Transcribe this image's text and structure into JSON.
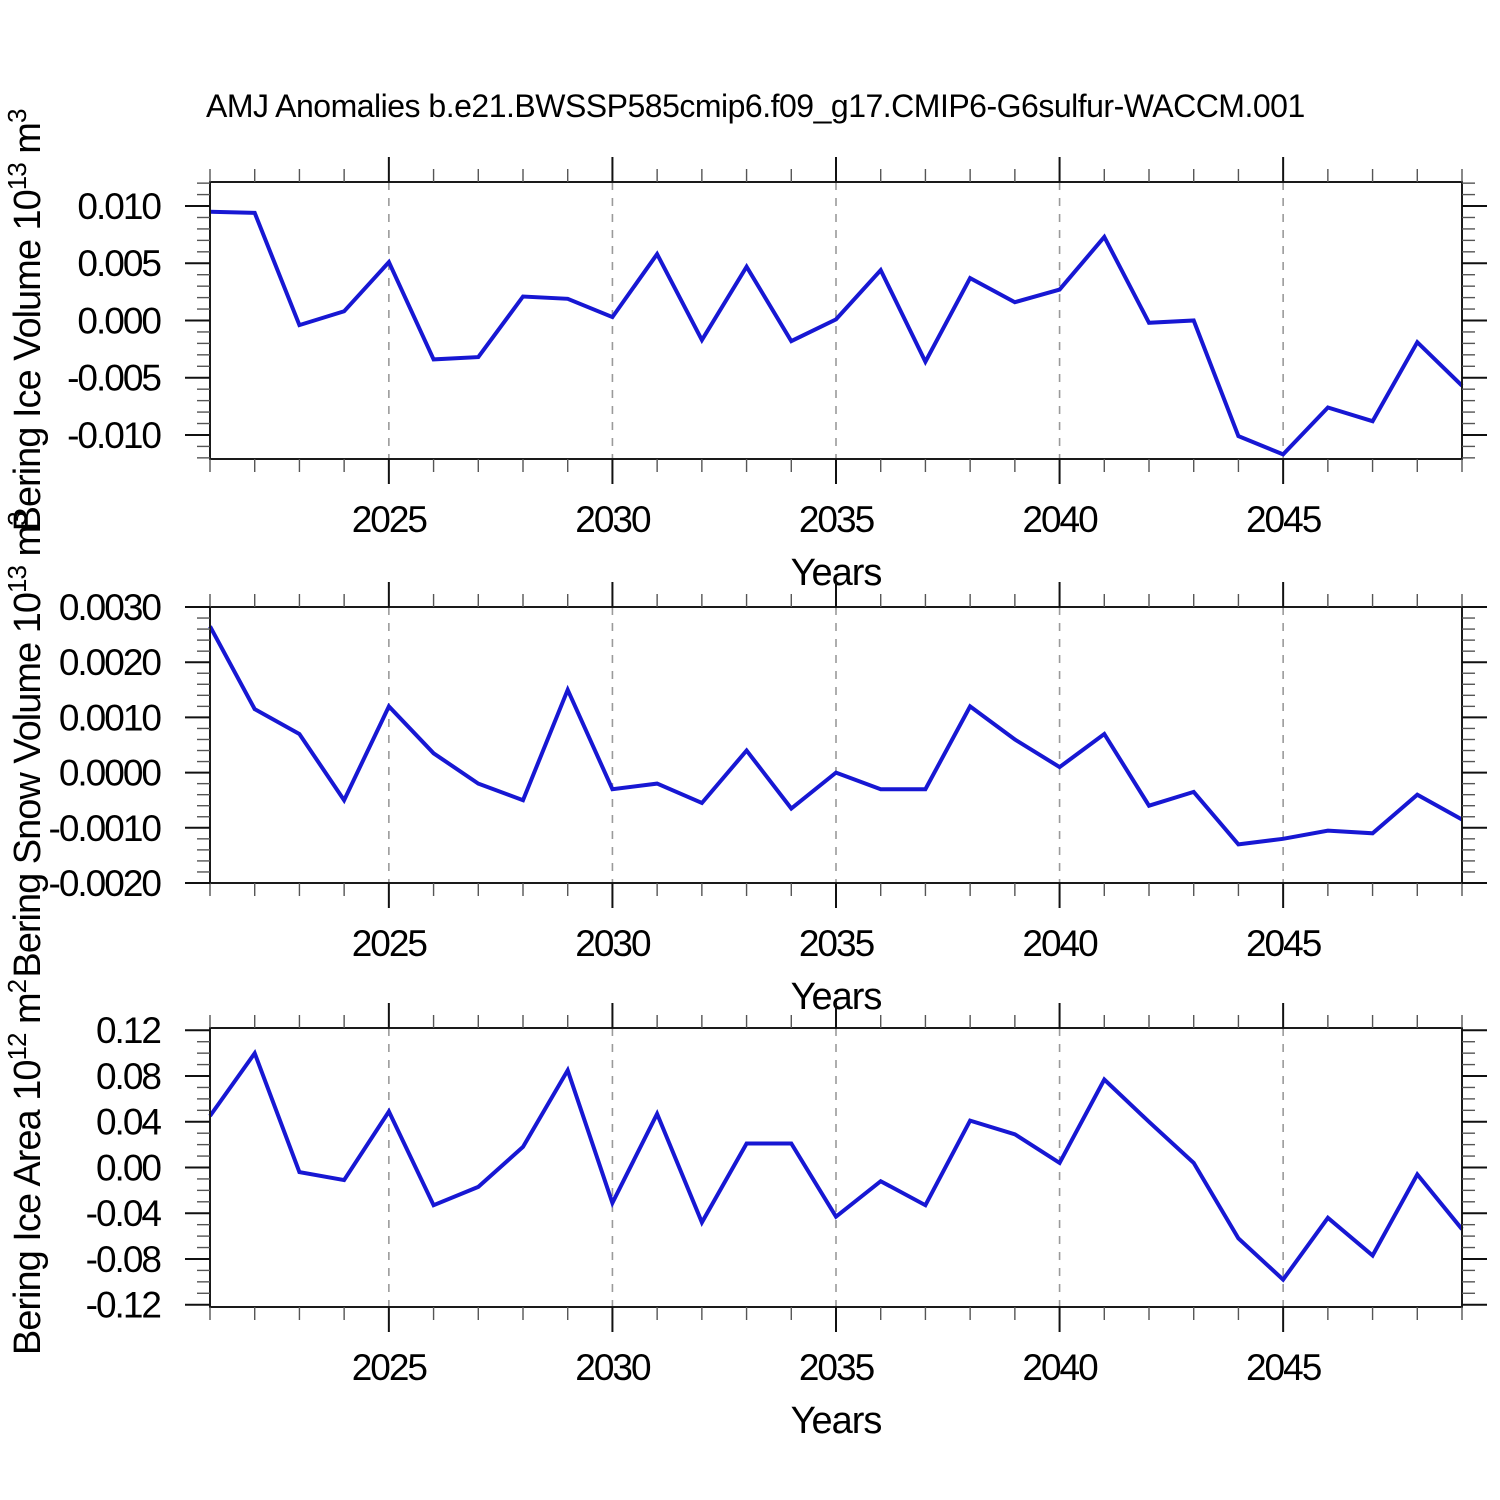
{
  "title": "AMJ Anomalies b.e21.BWSSP585cmip6.f09_g17.CMIP6-G6sulfur-WACCM.001",
  "colors": {
    "line": "#1717d3",
    "grid": "#9a9a9a",
    "frame": "#1a1a1a",
    "tick_major": "#111111",
    "tick_minor": "#555555",
    "text": "#000000",
    "background": "#ffffff"
  },
  "chart_data": [
    {
      "type": "line",
      "name": "bering-ice-volume",
      "ylabel_plain": "Bering Ice Volume 10^13 m^3",
      "ylabel_parts": [
        {
          "text": "Bering Ice Volume 10"
        },
        {
          "text": "13",
          "sup": true
        },
        {
          "text": " m"
        },
        {
          "text": "3",
          "sup": true
        }
      ],
      "xlabel": "Years",
      "xlim": [
        2021,
        2049
      ],
      "ylim": [
        -0.0121,
        0.0121
      ],
      "x": [
        2021,
        2022,
        2023,
        2024,
        2025,
        2026,
        2027,
        2028,
        2029,
        2030,
        2031,
        2032,
        2033,
        2034,
        2035,
        2036,
        2037,
        2038,
        2039,
        2040,
        2041,
        2042,
        2043,
        2044,
        2045,
        2046,
        2047,
        2048,
        2049
      ],
      "values": [
        0.0095,
        0.0094,
        -0.0004,
        0.0008,
        0.0051,
        -0.0034,
        -0.0032,
        0.0021,
        0.0019,
        0.0003,
        0.0058,
        -0.0017,
        0.0047,
        -0.0018,
        0.0001,
        0.0044,
        -0.0036,
        0.0037,
        0.0016,
        0.0027,
        0.0073,
        -0.0002,
        0.0,
        -0.0101,
        -0.0117,
        -0.0076,
        -0.0088,
        -0.0019,
        -0.0057
      ],
      "yticks": [
        {
          "v": 0.01,
          "label": "0.010"
        },
        {
          "v": 0.005,
          "label": "0.005"
        },
        {
          "v": 0.0,
          "label": "0.000"
        },
        {
          "v": -0.005,
          "label": "-0.005"
        },
        {
          "v": -0.01,
          "label": "-0.010"
        }
      ],
      "y_minor_step": 0.001,
      "xticks": [
        {
          "v": 2025,
          "label": "2025"
        },
        {
          "v": 2030,
          "label": "2030"
        },
        {
          "v": 2035,
          "label": "2035"
        },
        {
          "v": 2040,
          "label": "2040"
        },
        {
          "v": 2045,
          "label": "2045"
        }
      ],
      "x_minor_step": 1,
      "grid_at_xticks": true
    },
    {
      "type": "line",
      "name": "bering-snow-volume",
      "ylabel_plain": "Bering Snow Volume 10^13 m^3",
      "ylabel_parts": [
        {
          "text": "Bering Snow Volume 10"
        },
        {
          "text": "13",
          "sup": true
        },
        {
          "text": " m"
        },
        {
          "text": "3",
          "sup": true
        }
      ],
      "xlabel": "Years",
      "xlim": [
        2021,
        2049
      ],
      "ylim": [
        -0.002,
        0.003
      ],
      "x": [
        2021,
        2022,
        2023,
        2024,
        2025,
        2026,
        2027,
        2028,
        2029,
        2030,
        2031,
        2032,
        2033,
        2034,
        2035,
        2036,
        2037,
        2038,
        2039,
        2040,
        2041,
        2042,
        2043,
        2044,
        2045,
        2046,
        2047,
        2048,
        2049
      ],
      "values": [
        0.00265,
        0.00115,
        0.0007,
        -0.0005,
        0.0012,
        0.00035,
        -0.0002,
        -0.0005,
        0.0015,
        -0.0003,
        -0.0002,
        -0.00055,
        0.0004,
        -0.00065,
        0.0,
        -0.0003,
        -0.0003,
        0.0012,
        0.0006,
        0.0001,
        0.0007,
        -0.0006,
        -0.00035,
        -0.0013,
        -0.0012,
        -0.00105,
        -0.0011,
        -0.0004,
        -0.00085
      ],
      "yticks": [
        {
          "v": 0.003,
          "label": "0.0030"
        },
        {
          "v": 0.002,
          "label": "0.0020"
        },
        {
          "v": 0.001,
          "label": "0.0010"
        },
        {
          "v": 0.0,
          "label": "0.0000"
        },
        {
          "v": -0.001,
          "label": "-0.0010"
        },
        {
          "v": -0.002,
          "label": "-0.0020"
        }
      ],
      "y_minor_step": 0.0002,
      "xticks": [
        {
          "v": 2025,
          "label": "2025"
        },
        {
          "v": 2030,
          "label": "2030"
        },
        {
          "v": 2035,
          "label": "2035"
        },
        {
          "v": 2040,
          "label": "2040"
        },
        {
          "v": 2045,
          "label": "2045"
        }
      ],
      "x_minor_step": 1,
      "grid_at_xticks": true
    },
    {
      "type": "line",
      "name": "bering-ice-area",
      "ylabel_plain": "Bering Ice Area 10^12 m^2",
      "ylabel_parts": [
        {
          "text": "Bering Ice Area 10"
        },
        {
          "text": "12",
          "sup": true
        },
        {
          "text": " m"
        },
        {
          "text": "2",
          "sup": true
        }
      ],
      "xlabel": "Years",
      "xlim": [
        2021,
        2049
      ],
      "ylim": [
        -0.122,
        0.122
      ],
      "x": [
        2021,
        2022,
        2023,
        2024,
        2025,
        2026,
        2027,
        2028,
        2029,
        2030,
        2031,
        2032,
        2033,
        2034,
        2035,
        2036,
        2037,
        2038,
        2039,
        2040,
        2041,
        2042,
        2043,
        2044,
        2045,
        2046,
        2047,
        2048,
        2049
      ],
      "values": [
        0.045,
        0.1,
        -0.004,
        -0.011,
        0.049,
        -0.033,
        -0.017,
        0.018,
        0.085,
        -0.031,
        0.047,
        -0.048,
        0.021,
        0.021,
        -0.043,
        -0.012,
        -0.033,
        0.041,
        0.029,
        0.004,
        0.077,
        0.04,
        0.004,
        -0.062,
        -0.098,
        -0.044,
        -0.077,
        -0.006,
        -0.054
      ],
      "yticks": [
        {
          "v": 0.12,
          "label": "0.12"
        },
        {
          "v": 0.08,
          "label": "0.08"
        },
        {
          "v": 0.04,
          "label": "0.04"
        },
        {
          "v": 0.0,
          "label": "0.00"
        },
        {
          "v": -0.04,
          "label": "-0.04"
        },
        {
          "v": -0.08,
          "label": "-0.08"
        },
        {
          "v": -0.12,
          "label": "-0.12"
        }
      ],
      "y_minor_step": 0.01,
      "xticks": [
        {
          "v": 2025,
          "label": "2025"
        },
        {
          "v": 2030,
          "label": "2030"
        },
        {
          "v": 2035,
          "label": "2035"
        },
        {
          "v": 2040,
          "label": "2040"
        },
        {
          "v": 2045,
          "label": "2045"
        }
      ],
      "x_minor_step": 1,
      "grid_at_xticks": true
    }
  ]
}
